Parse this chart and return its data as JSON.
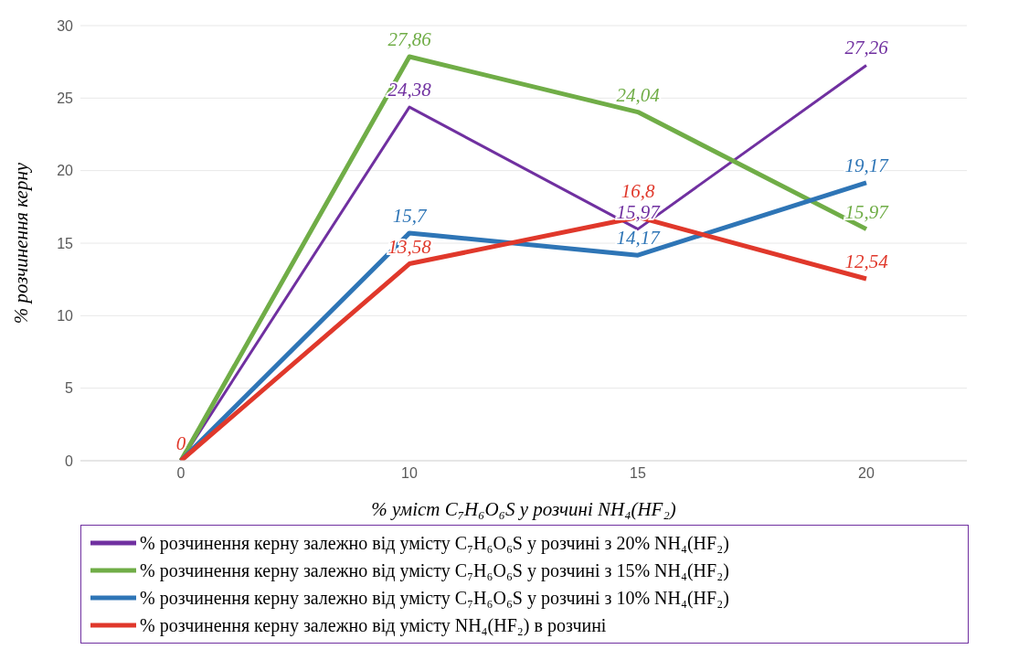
{
  "chart_data": {
    "type": "line",
    "xlabel": "% уміст C₇H₆O₆S у розчині NH₄(HF₂)",
    "ylabel": "% розчинення керну",
    "categories": [
      "0",
      "10",
      "15",
      "20"
    ],
    "ylim": [
      0,
      30
    ],
    "yticks": [
      0,
      5,
      10,
      15,
      20,
      25,
      30
    ],
    "grid": "y",
    "legend": "bottom",
    "marker": "none",
    "line_style": "solid",
    "series": [
      {
        "name": "% розчинення керну залежно від умісту C₇H₆O₆S у розчині з 20% NH₄(HF₂)",
        "color": "#7030a0",
        "values": [
          0,
          24.38,
          15.97,
          27.26
        ],
        "value_labels": [
          null,
          "24,38",
          "15,97",
          "27,26"
        ]
      },
      {
        "name": "% розчинення керну залежно від умісту C₇H₆O₆S у розчині з 15% NH₄(HF₂)",
        "color": "#70ad47",
        "values": [
          0,
          27.86,
          24.04,
          15.97
        ],
        "value_labels": [
          null,
          "27,86",
          "24,04",
          "15,97"
        ]
      },
      {
        "name": "% розчинення керну залежно від умісту C₇H₆O₆S у розчині з 10% NH₄(HF₂)",
        "color": "#2e75b6",
        "values": [
          0,
          15.7,
          14.17,
          19.17
        ],
        "value_labels": [
          null,
          "15,7",
          "14,17",
          "19,17"
        ]
      },
      {
        "name": "% розчинення керну залежно від умісту NH₄(HF₂) в розчині",
        "color": "#e0382b",
        "values": [
          0,
          13.58,
          16.8,
          12.54
        ],
        "value_labels": [
          "0",
          "13,58",
          "16,8",
          "12,54"
        ]
      }
    ]
  }
}
